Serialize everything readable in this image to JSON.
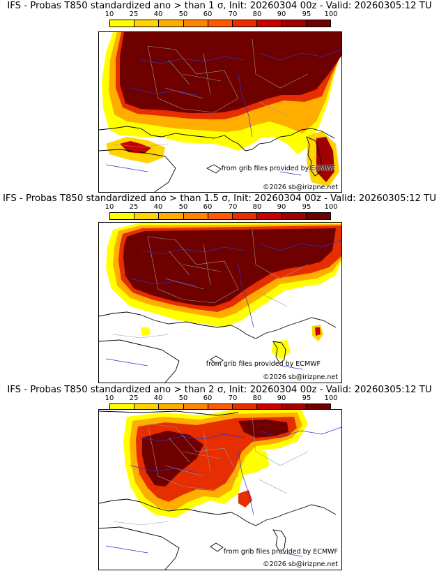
{
  "colors": {
    "bins": [
      "#ffff00",
      "#ffd400",
      "#ffae00",
      "#ff8400",
      "#ff5a00",
      "#e62e00",
      "#c80000",
      "#a00000",
      "#6e0000"
    ],
    "sea": "#ffffff",
    "coast": "#000000",
    "rivers": "#2f2fcc",
    "borders": "#999999"
  },
  "scale": {
    "labels": [
      "10",
      "25",
      "40",
      "50",
      "60",
      "70",
      "80",
      "90",
      "95",
      "100"
    ]
  },
  "panels": [
    {
      "title": "IFS - Probas T850  standardized ano > than 1 σ, Init: 20260304 00z - Valid: 20260305:12 TU",
      "threshold_sigma": 1,
      "credit_line1": "from grib files provided by ECMWF",
      "credit_line2": "©2026 sb@irizpne.net"
    },
    {
      "title": "IFS - Probas T850  standardized ano > than 1.5 σ, Init: 20260304 00z - Valid: 20260305:12 TU",
      "threshold_sigma": 1.5,
      "credit_line1": "from grib files provided by ECMWF",
      "credit_line2": "©2026 sb@irizpne.net"
    },
    {
      "title": "IFS - Probas T850  standardized ano > than 2 σ, Init: 20260304 00z - Valid: 20260305:12 TU",
      "threshold_sigma": 2,
      "credit_line1": "from grib files provided by ECMWF",
      "credit_line2": "©2026 sb@irizpne.net"
    }
  ]
}
